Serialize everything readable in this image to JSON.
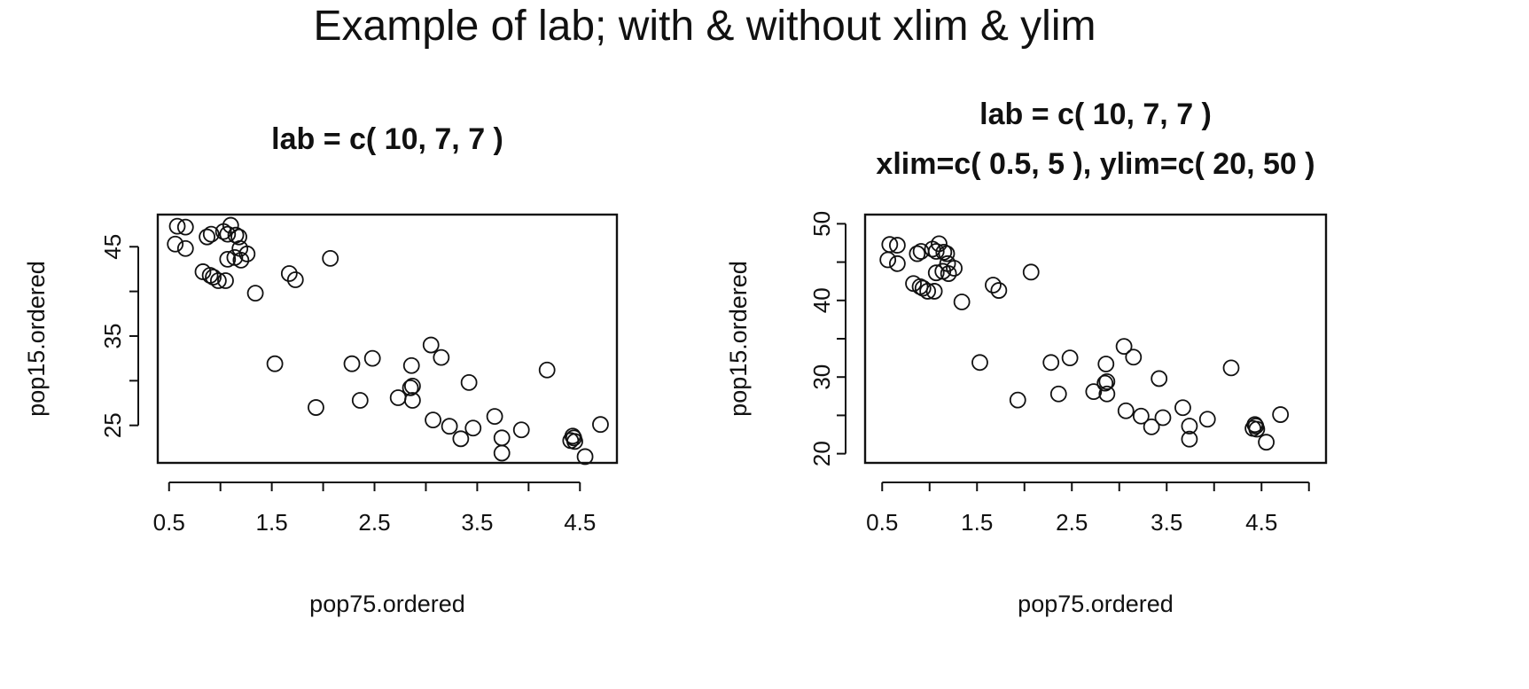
{
  "title": "Example of lab; with & without xlim & ylim",
  "chart_data": [
    {
      "type": "scatter",
      "title_lines": [
        "lab = c( 10, 7, 7 )"
      ],
      "xlabel": "pop75.ordered",
      "ylabel": "pop15.ordered",
      "xlim": [
        0.39,
        4.86
      ],
      "ylim": [
        20.8,
        48.6
      ],
      "xticks": [
        0.5,
        1.0,
        1.5,
        2.0,
        2.5,
        3.0,
        3.5,
        4.0,
        4.5
      ],
      "xtick_labels": [
        "0.5",
        "",
        "1.5",
        "",
        "2.5",
        "",
        "3.5",
        "",
        "4.5"
      ],
      "yticks": [
        25,
        30,
        35,
        40,
        45
      ],
      "ytick_labels": [
        "25",
        "",
        "35",
        "",
        "45"
      ],
      "grid": false
    },
    {
      "type": "scatter",
      "title_lines": [
        "lab = c( 10, 7, 7 )",
        "xlim=c( 0.5, 5 ), ylim=c( 20, 50 )"
      ],
      "xlabel": "pop75.ordered",
      "ylabel": "pop15.ordered",
      "xlim": [
        0.32,
        5.18
      ],
      "ylim": [
        18.8,
        51.2
      ],
      "xticks": [
        0.5,
        1.0,
        1.5,
        2.0,
        2.5,
        3.0,
        3.5,
        4.0,
        4.5,
        5.0
      ],
      "xtick_labels": [
        "0.5",
        "",
        "1.5",
        "",
        "2.5",
        "",
        "3.5",
        "",
        "4.5",
        ""
      ],
      "yticks": [
        20,
        25,
        30,
        35,
        40,
        45,
        50
      ],
      "ytick_labels": [
        "20",
        "",
        "30",
        "",
        "40",
        "",
        "50"
      ],
      "grid": false
    }
  ],
  "points": {
    "x": [
      0.56,
      0.58,
      0.66,
      0.66,
      0.83,
      0.87,
      0.9,
      0.91,
      0.93,
      0.98,
      1.03,
      1.05,
      1.07,
      1.07,
      1.1,
      1.14,
      1.15,
      1.18,
      1.19,
      1.2,
      1.26,
      1.34,
      1.53,
      1.67,
      1.73,
      2.07,
      1.93,
      2.28,
      2.36,
      2.48,
      2.73,
      2.85,
      2.86,
      2.87,
      2.87,
      3.05,
      3.07,
      3.15,
      3.23,
      3.34,
      3.42,
      3.46,
      3.67,
      3.74,
      3.74,
      3.93,
      4.18,
      4.41,
      4.43,
      4.44,
      4.45,
      4.55,
      4.7
    ],
    "y": [
      45.3,
      47.3,
      44.8,
      47.2,
      42.2,
      46.1,
      41.8,
      46.4,
      41.6,
      41.2,
      46.7,
      41.2,
      43.6,
      46.4,
      47.4,
      43.8,
      46.3,
      46.1,
      44.8,
      43.5,
      44.2,
      39.8,
      31.9,
      42.0,
      41.3,
      43.7,
      27.0,
      31.9,
      27.8,
      32.5,
      28.1,
      29.2,
      31.7,
      29.4,
      27.8,
      34.0,
      25.6,
      32.6,
      24.9,
      23.5,
      29.8,
      24.7,
      26.0,
      23.6,
      21.9,
      24.5,
      31.2,
      23.3,
      23.8,
      23.6,
      23.2,
      21.5,
      25.1
    ]
  }
}
